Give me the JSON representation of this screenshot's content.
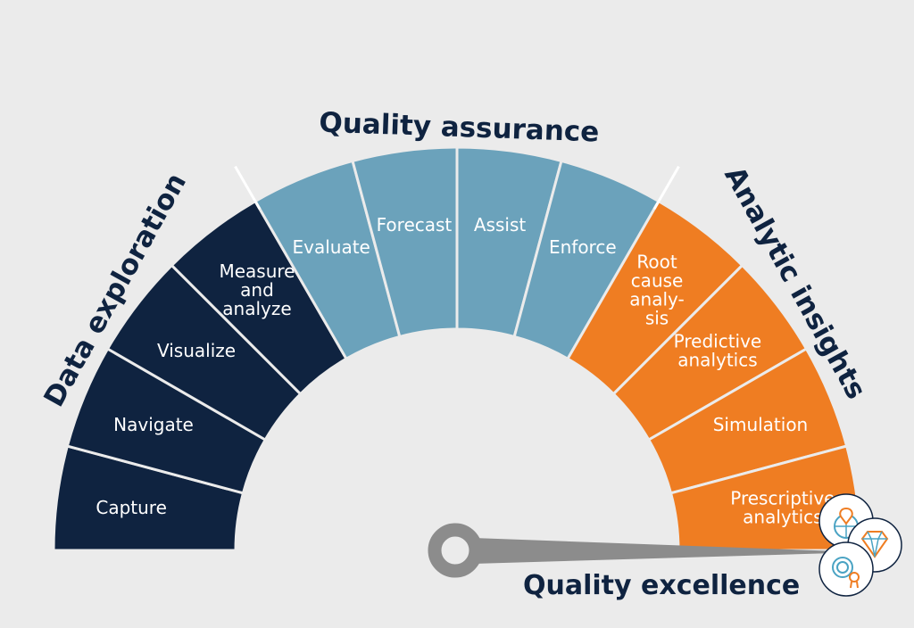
{
  "categories": {
    "data_exploration": {
      "label": "Data exploration",
      "color": "#0f2340"
    },
    "quality_assurance": {
      "label": "Quality assurance",
      "color": "#6ba2bb"
    },
    "analytic_insights": {
      "label": "Analytic insights",
      "color": "#ef7d22"
    }
  },
  "segments": [
    {
      "id": "capture",
      "lines": [
        "Capture"
      ],
      "category": "data_exploration"
    },
    {
      "id": "navigate",
      "lines": [
        "Navigate"
      ],
      "category": "data_exploration"
    },
    {
      "id": "visualize",
      "lines": [
        "Visualize"
      ],
      "category": "data_exploration"
    },
    {
      "id": "measure-and-analyze",
      "lines": [
        "Measure",
        "and",
        "analyze"
      ],
      "category": "data_exploration"
    },
    {
      "id": "evaluate",
      "lines": [
        "Evaluate"
      ],
      "category": "quality_assurance"
    },
    {
      "id": "forecast",
      "lines": [
        "Forecast"
      ],
      "category": "quality_assurance"
    },
    {
      "id": "assist",
      "lines": [
        "Assist"
      ],
      "category": "quality_assurance"
    },
    {
      "id": "enforce",
      "lines": [
        "Enforce"
      ],
      "category": "quality_assurance"
    },
    {
      "id": "root-cause-analysis",
      "lines": [
        "Root",
        "cause",
        "analy-",
        "sis"
      ],
      "category": "analytic_insights"
    },
    {
      "id": "predictive-analytics",
      "lines": [
        "Predictive",
        "analytics"
      ],
      "category": "analytic_insights"
    },
    {
      "id": "simulation",
      "lines": [
        "Simulation"
      ],
      "category": "analytic_insights"
    },
    {
      "id": "prescriptive-analytics",
      "lines": [
        "Prescriptive",
        "analytics"
      ],
      "category": "analytic_insights"
    }
  ],
  "needle": {
    "label": "Quality excellence",
    "color": "#8c8c8c"
  },
  "icons": [
    "location-globe-icon",
    "diamond-icon",
    "fingerprint-certificate-icon"
  ],
  "background": "#ebebeb"
}
